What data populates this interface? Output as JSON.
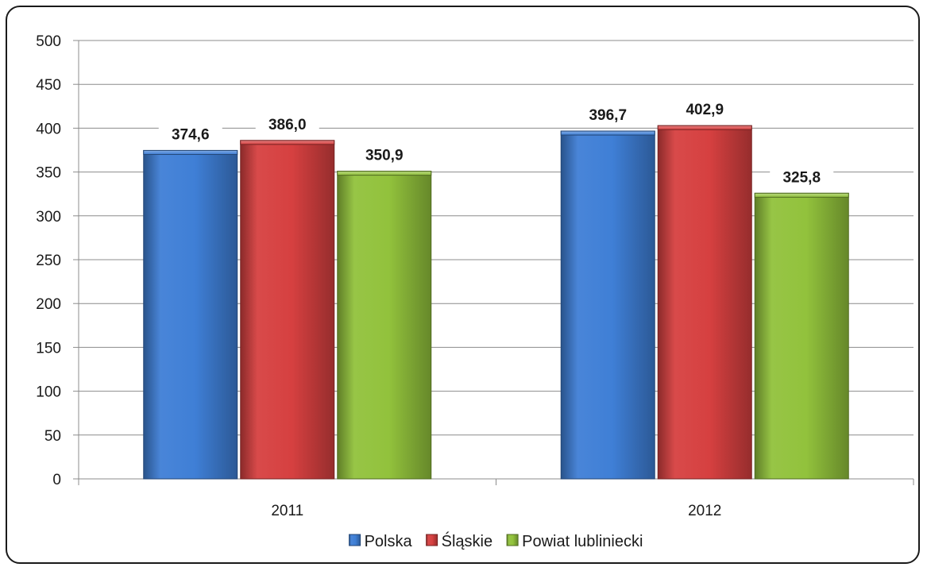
{
  "chart_data": {
    "type": "bar",
    "categories": [
      "2011",
      "2012"
    ],
    "series": [
      {
        "name": "Polska",
        "values": [
          374.6,
          396.7
        ],
        "labels": [
          "374,6",
          "396,7"
        ],
        "color": "#3f7fd6"
      },
      {
        "name": "Śląskie",
        "values": [
          386.0,
          402.9
        ],
        "labels": [
          "386,0",
          "402,9"
        ],
        "color": "#d64040"
      },
      {
        "name": "Powiat lubliniecki",
        "values": [
          350.9,
          325.8
        ],
        "labels": [
          "350,9",
          "325,8"
        ],
        "color": "#92c23c"
      }
    ],
    "ylim": [
      0,
      500
    ],
    "yticks": [
      0,
      50,
      100,
      150,
      200,
      250,
      300,
      350,
      400,
      450,
      500
    ],
    "grid": true,
    "legend": "bottom",
    "title": "",
    "xlabel": "",
    "ylabel": ""
  }
}
